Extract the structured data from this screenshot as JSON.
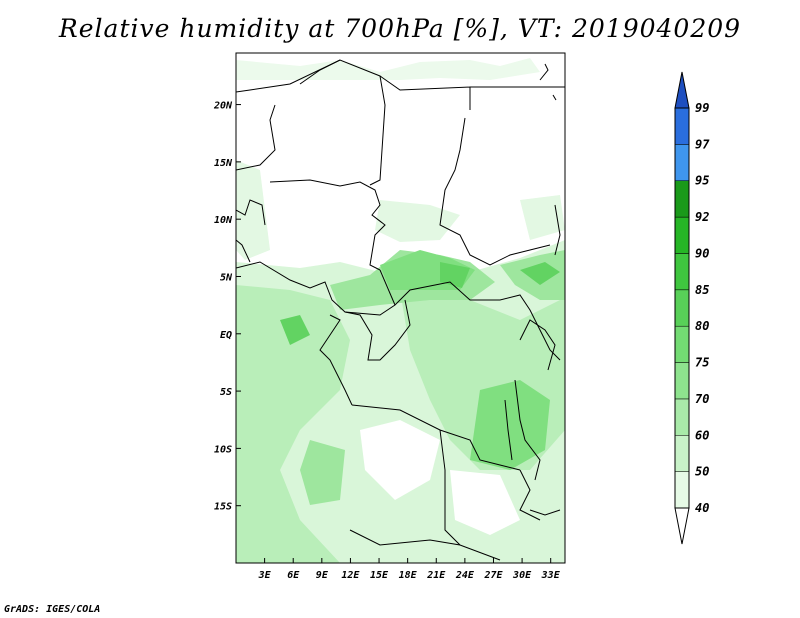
{
  "title": "Relative humidity at 700hPa [%], VT: 2019040209",
  "footer": "GrADS: IGES/COLA",
  "map": {
    "lat_labels": [
      "20N",
      "15N",
      "10N",
      "5N",
      "EQ",
      "5S",
      "10S",
      "15S"
    ],
    "lat_values": [
      20,
      15,
      10,
      5,
      0,
      -5,
      -10,
      -15
    ],
    "lon_labels": [
      "3E",
      "6E",
      "9E",
      "12E",
      "15E",
      "18E",
      "21E",
      "24E",
      "27E",
      "30E",
      "33E"
    ],
    "lon_values": [
      3,
      6,
      9,
      12,
      15,
      18,
      21,
      24,
      27,
      30,
      33
    ],
    "lat_range": [
      -20,
      24.5
    ],
    "lon_range": [
      0,
      34.5
    ]
  },
  "colorbar": {
    "labels": [
      "40",
      "50",
      "60",
      "70",
      "75",
      "80",
      "85",
      "90",
      "92",
      "95",
      "97",
      "99"
    ],
    "colors": [
      "#ffffff",
      "#e6fae6",
      "#c8f2c8",
      "#a9eaa9",
      "#8ee38e",
      "#73db73",
      "#58d058",
      "#3fc63f",
      "#26b626",
      "#1a9a1a",
      "#3f96ee",
      "#2a6ede",
      "#1e4fc0"
    ],
    "land_edge": "#000000"
  }
}
